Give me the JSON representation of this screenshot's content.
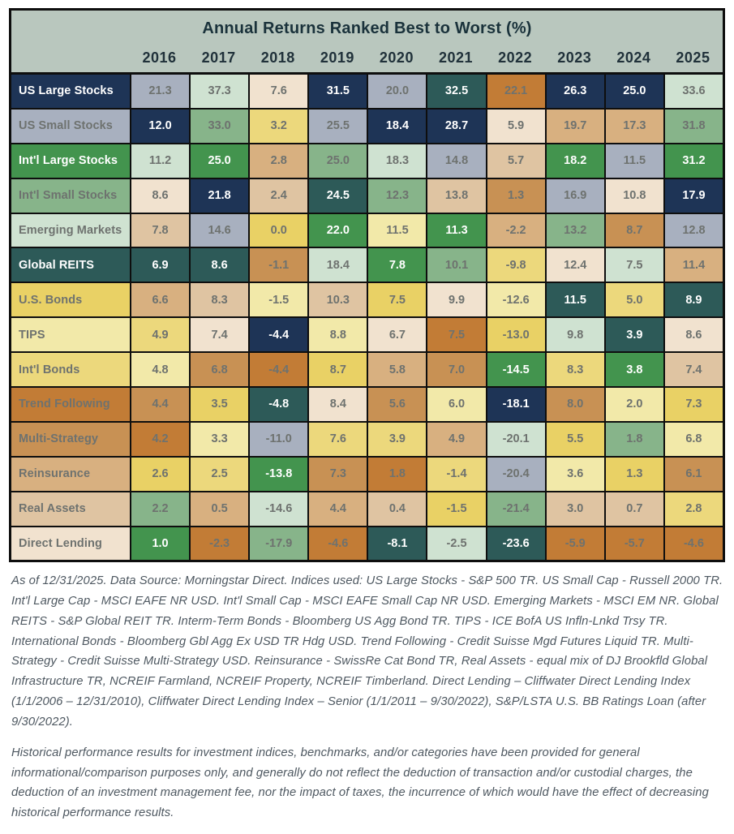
{
  "chart_data": {
    "type": "table",
    "title": "Annual Returns Ranked Best to Worst (%)",
    "subtitle": "",
    "years": [
      "2016",
      "2017",
      "2018",
      "2019",
      "2020",
      "2021",
      "2022",
      "2023",
      "2024",
      "2025"
    ],
    "layout": {
      "header_bg": "#b9c7be",
      "grid_line_color": "#0e0e0e",
      "value_text_color": "#6e726f",
      "light_value_text_color": "#ffffff",
      "rows_are": "rank (best to worst top to bottom)",
      "cell_color_means": "asset class"
    },
    "assets": [
      {
        "id": "us_large",
        "label": "US Large Stocks",
        "color": "#1e3456",
        "light_text": true
      },
      {
        "id": "us_small",
        "label": "US Small Stocks",
        "color": "#a8b0bf",
        "light_text": false
      },
      {
        "id": "intl_large",
        "label": "Int'l Large Stocks",
        "color": "#43944e",
        "light_text": true
      },
      {
        "id": "intl_small",
        "label": "Int'l Small Stocks",
        "color": "#87b48a",
        "light_text": false
      },
      {
        "id": "em",
        "label": "Emerging Markets",
        "color": "#cfe2d1",
        "light_text": false
      },
      {
        "id": "reits",
        "label": "Global REITS",
        "color": "#2d5a58",
        "light_text": true
      },
      {
        "id": "us_bonds",
        "label": "U.S. Bonds",
        "color": "#e9d165",
        "light_text": false
      },
      {
        "id": "tips",
        "label": "TIPS",
        "color": "#f2e9a9",
        "light_text": false
      },
      {
        "id": "intl_bonds",
        "label": "Int'l Bonds",
        "color": "#ecd87c",
        "light_text": false
      },
      {
        "id": "trend",
        "label": "Trend Following",
        "color": "#c27c36",
        "light_text": false
      },
      {
        "id": "multi",
        "label": "Multi-Strategy",
        "color": "#c89154",
        "light_text": false
      },
      {
        "id": "reinsurance",
        "label": "Reinsurance",
        "color": "#d8b080",
        "light_text": false
      },
      {
        "id": "real_assets",
        "label": "Real Assets",
        "color": "#dfc4a2",
        "light_text": false
      },
      {
        "id": "direct_lending",
        "label": "Direct Lending",
        "color": "#f1e2cf",
        "light_text": false
      }
    ],
    "ranked_columns": {
      "2016": [
        {
          "a": "us_small",
          "v": 21.3
        },
        {
          "a": "us_large",
          "v": 12.0
        },
        {
          "a": "em",
          "v": 11.2
        },
        {
          "a": "direct_lending",
          "v": 8.6
        },
        {
          "a": "real_assets",
          "v": 7.8
        },
        {
          "a": "reits",
          "v": 6.9
        },
        {
          "a": "reinsurance",
          "v": 6.6
        },
        {
          "a": "intl_bonds",
          "v": 4.9
        },
        {
          "a": "tips",
          "v": 4.8
        },
        {
          "a": "multi",
          "v": 4.4
        },
        {
          "a": "trend",
          "v": 4.2
        },
        {
          "a": "us_bonds",
          "v": 2.6
        },
        {
          "a": "intl_small",
          "v": 2.2
        },
        {
          "a": "intl_large",
          "v": 1.0
        }
      ],
      "2017": [
        {
          "a": "em",
          "v": 37.3
        },
        {
          "a": "intl_small",
          "v": 33.0
        },
        {
          "a": "intl_large",
          "v": 25.0
        },
        {
          "a": "us_large",
          "v": 21.8
        },
        {
          "a": "us_small",
          "v": 14.6
        },
        {
          "a": "reits",
          "v": 8.6
        },
        {
          "a": "real_assets",
          "v": 8.3
        },
        {
          "a": "direct_lending",
          "v": 7.4
        },
        {
          "a": "multi",
          "v": 6.8
        },
        {
          "a": "us_bonds",
          "v": 3.5
        },
        {
          "a": "tips",
          "v": 3.3
        },
        {
          "a": "intl_bonds",
          "v": 2.5
        },
        {
          "a": "reinsurance",
          "v": 0.5
        },
        {
          "a": "trend",
          "v": -2.3
        }
      ],
      "2018": [
        {
          "a": "direct_lending",
          "v": 7.6
        },
        {
          "a": "intl_bonds",
          "v": 3.2
        },
        {
          "a": "reinsurance",
          "v": 2.8
        },
        {
          "a": "real_assets",
          "v": 2.4
        },
        {
          "a": "us_bonds",
          "v": 0.0
        },
        {
          "a": "multi",
          "v": -1.1
        },
        {
          "a": "tips",
          "v": -1.5
        },
        {
          "a": "us_large",
          "v": -4.4
        },
        {
          "a": "trend",
          "v": -4.4
        },
        {
          "a": "reits",
          "v": -4.8
        },
        {
          "a": "us_small",
          "v": -11.0
        },
        {
          "a": "intl_large",
          "v": -13.8
        },
        {
          "a": "em",
          "v": -14.6
        },
        {
          "a": "intl_small",
          "v": -17.9
        }
      ],
      "2019": [
        {
          "a": "us_large",
          "v": 31.5
        },
        {
          "a": "us_small",
          "v": 25.5
        },
        {
          "a": "intl_small",
          "v": 25.0
        },
        {
          "a": "reits",
          "v": 24.5
        },
        {
          "a": "intl_large",
          "v": 22.0
        },
        {
          "a": "em",
          "v": 18.4
        },
        {
          "a": "real_assets",
          "v": 10.3
        },
        {
          "a": "tips",
          "v": 8.8
        },
        {
          "a": "us_bonds",
          "v": 8.7
        },
        {
          "a": "direct_lending",
          "v": 8.4
        },
        {
          "a": "intl_bonds",
          "v": 7.6
        },
        {
          "a": "multi",
          "v": 7.3
        },
        {
          "a": "reinsurance",
          "v": 4.4
        },
        {
          "a": "trend",
          "v": -4.6
        }
      ],
      "2020": [
        {
          "a": "us_small",
          "v": 20.0
        },
        {
          "a": "us_large",
          "v": 18.4
        },
        {
          "a": "em",
          "v": 18.3
        },
        {
          "a": "intl_small",
          "v": 12.3
        },
        {
          "a": "tips",
          "v": 11.5
        },
        {
          "a": "intl_large",
          "v": 7.8
        },
        {
          "a": "us_bonds",
          "v": 7.5
        },
        {
          "a": "direct_lending",
          "v": 6.7
        },
        {
          "a": "reinsurance",
          "v": 5.8
        },
        {
          "a": "multi",
          "v": 5.6
        },
        {
          "a": "intl_bonds",
          "v": 3.9
        },
        {
          "a": "trend",
          "v": 1.8
        },
        {
          "a": "real_assets",
          "v": 0.4
        },
        {
          "a": "reits",
          "v": -8.1
        }
      ],
      "2021": [
        {
          "a": "reits",
          "v": 32.5
        },
        {
          "a": "us_large",
          "v": 28.7
        },
        {
          "a": "us_small",
          "v": 14.8
        },
        {
          "a": "real_assets",
          "v": 13.8
        },
        {
          "a": "intl_large",
          "v": 11.3
        },
        {
          "a": "intl_small",
          "v": 10.1
        },
        {
          "a": "direct_lending",
          "v": 9.9
        },
        {
          "a": "trend",
          "v": 7.5
        },
        {
          "a": "multi",
          "v": 7.0
        },
        {
          "a": "tips",
          "v": 6.0
        },
        {
          "a": "reinsurance",
          "v": 4.9
        },
        {
          "a": "intl_bonds",
          "v": -1.4
        },
        {
          "a": "us_bonds",
          "v": -1.5
        },
        {
          "a": "em",
          "v": -2.5
        }
      ],
      "2022": [
        {
          "a": "trend",
          "v": 22.1
        },
        {
          "a": "direct_lending",
          "v": 5.9
        },
        {
          "a": "real_assets",
          "v": 5.7
        },
        {
          "a": "multi",
          "v": 1.3
        },
        {
          "a": "reinsurance",
          "v": -2.2
        },
        {
          "a": "intl_bonds",
          "v": -9.8
        },
        {
          "a": "tips",
          "v": -12.6
        },
        {
          "a": "us_bonds",
          "v": -13.0
        },
        {
          "a": "intl_large",
          "v": -14.5
        },
        {
          "a": "us_large",
          "v": -18.1
        },
        {
          "a": "em",
          "v": -20.1
        },
        {
          "a": "us_small",
          "v": -20.4
        },
        {
          "a": "intl_small",
          "v": -21.4
        },
        {
          "a": "reits",
          "v": -23.6
        }
      ],
      "2023": [
        {
          "a": "us_large",
          "v": 26.3
        },
        {
          "a": "reinsurance",
          "v": 19.7
        },
        {
          "a": "intl_large",
          "v": 18.2
        },
        {
          "a": "us_small",
          "v": 16.9
        },
        {
          "a": "intl_small",
          "v": 13.2
        },
        {
          "a": "direct_lending",
          "v": 12.4
        },
        {
          "a": "reits",
          "v": 11.5
        },
        {
          "a": "em",
          "v": 9.8
        },
        {
          "a": "intl_bonds",
          "v": 8.3
        },
        {
          "a": "multi",
          "v": 8.0
        },
        {
          "a": "us_bonds",
          "v": 5.5
        },
        {
          "a": "tips",
          "v": 3.6
        },
        {
          "a": "real_assets",
          "v": 3.0
        },
        {
          "a": "trend",
          "v": -5.9
        }
      ],
      "2024": [
        {
          "a": "us_large",
          "v": 25.0
        },
        {
          "a": "reinsurance",
          "v": 17.3
        },
        {
          "a": "us_small",
          "v": 11.5
        },
        {
          "a": "direct_lending",
          "v": 10.8
        },
        {
          "a": "multi",
          "v": 8.7
        },
        {
          "a": "em",
          "v": 7.5
        },
        {
          "a": "intl_bonds",
          "v": 5.0
        },
        {
          "a": "reits",
          "v": 3.9
        },
        {
          "a": "intl_large",
          "v": 3.8
        },
        {
          "a": "tips",
          "v": 2.0
        },
        {
          "a": "intl_small",
          "v": 1.8
        },
        {
          "a": "us_bonds",
          "v": 1.3
        },
        {
          "a": "real_assets",
          "v": 0.7
        },
        {
          "a": "trend",
          "v": -5.7
        }
      ],
      "2025": [
        {
          "a": "em",
          "v": 33.6
        },
        {
          "a": "intl_small",
          "v": 31.8
        },
        {
          "a": "intl_large",
          "v": 31.2
        },
        {
          "a": "us_large",
          "v": 17.9
        },
        {
          "a": "us_small",
          "v": 12.8
        },
        {
          "a": "reinsurance",
          "v": 11.4
        },
        {
          "a": "reits",
          "v": 8.9
        },
        {
          "a": "direct_lending",
          "v": 8.6
        },
        {
          "a": "real_assets",
          "v": 7.4
        },
        {
          "a": "us_bonds",
          "v": 7.3
        },
        {
          "a": "tips",
          "v": 6.8
        },
        {
          "a": "multi",
          "v": 6.1
        },
        {
          "a": "intl_bonds",
          "v": 2.8
        },
        {
          "a": "trend",
          "v": -4.6
        }
      ]
    }
  },
  "footnotes": {
    "sources": "As of 12/31/2025. Data Source: Morningstar Direct. Indices used: US Large Stocks - S&P 500 TR. US Small Cap - Russell 2000 TR. Int'l Large Cap - MSCI EAFE NR USD. Int'l Small Cap - MSCI EAFE Small Cap NR USD. Emerging Markets - MSCI EM NR. Global REITS - S&P Global REIT TR. Interm-Term Bonds - Bloomberg US Agg Bond TR. TIPS - ICE BofA US Infln-Lnkd Trsy TR. International Bonds - Bloomberg Gbl Agg Ex USD TR Hdg USD. Trend Following - Credit Suisse Mgd Futures Liquid TR. Multi-Strategy - Credit Suisse Multi-Strategy USD. Reinsurance - SwissRe Cat Bond TR, Real Assets - equal mix of DJ Brookfld Global Infrastructure TR, NCREIF Farmland, NCREIF Property, NCREIF Timberland. Direct Lending – Cliffwater Direct Lending Index (1/1/2006 – 12/31/2010), Cliffwater Direct Lending Index – Senior (1/1/2011 – 9/30/2022), S&P/LSTA U.S. BB Ratings Loan (after 9/30/2022).",
    "disclaimer": "Historical performance results for investment indices, benchmarks, and/or categories have been provided for general informational/comparison purposes only, and generally do not reflect the deduction of transaction and/or custodial charges, the deduction of an investment management fee, nor the impact of taxes, the incurrence of which would have the effect of decreasing historical performance results."
  }
}
